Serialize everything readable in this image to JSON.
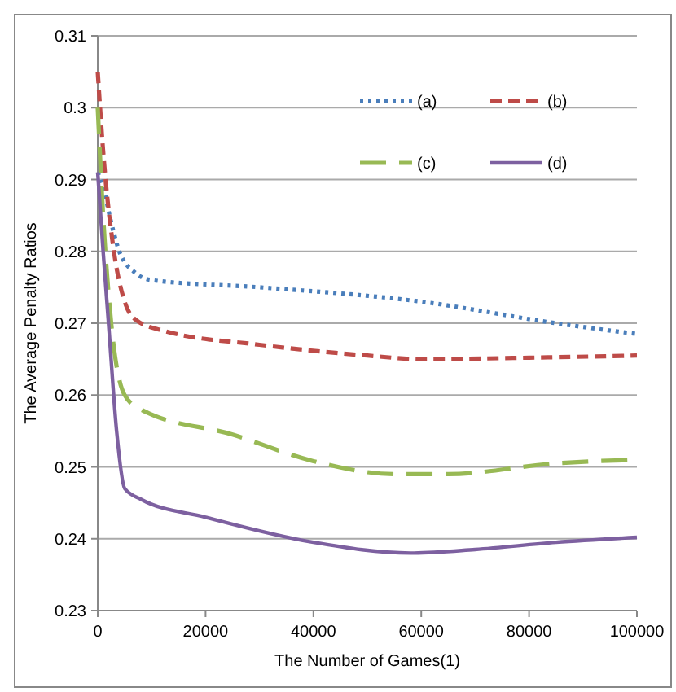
{
  "chart_data": {
    "type": "line",
    "xlabel": "The Number of Games(1)",
    "ylabel": "The Average Penalty Ratios",
    "xlim": [
      0,
      100000
    ],
    "xticks": [
      0,
      20000,
      40000,
      60000,
      80000,
      100000
    ],
    "ylim": [
      0.23,
      0.31
    ],
    "yticks": [
      0.23,
      0.24,
      0.25,
      0.26,
      0.27,
      0.28,
      0.29,
      0.3,
      0.31
    ],
    "grid": "y",
    "legend": "top right",
    "marker": "none",
    "series": [
      {
        "name": "(a)",
        "color": "#4a7ebb",
        "line_style": "dotted",
        "x": [
          0,
          1000,
          2500,
          4000,
          7000,
          10000,
          30000,
          60000,
          85000,
          100000
        ],
        "values": [
          0.291,
          0.289,
          0.284,
          0.28,
          0.277,
          0.276,
          0.275,
          0.273,
          0.27,
          0.2685
        ]
      },
      {
        "name": "(b)",
        "color": "#be4b48",
        "line_style": "dashed",
        "x": [
          0,
          1000,
          3000,
          5000,
          7000,
          12000,
          30000,
          50000,
          60000,
          80000,
          100000
        ],
        "values": [
          0.305,
          0.294,
          0.28,
          0.273,
          0.2705,
          0.269,
          0.267,
          0.2655,
          0.265,
          0.2652,
          0.2655
        ]
      },
      {
        "name": "(c)",
        "color": "#98b954",
        "line_style": "longdash",
        "x": [
          0,
          1000,
          2500,
          5000,
          8000,
          25000,
          40000,
          55000,
          65000,
          85000,
          100000
        ],
        "values": [
          0.3,
          0.285,
          0.27,
          0.26,
          0.258,
          0.2545,
          0.2508,
          0.249,
          0.249,
          0.2505,
          0.251
        ]
      },
      {
        "name": "(d)",
        "color": "#7d60a0",
        "line_style": "solid",
        "x": [
          0,
          1000,
          2000,
          3500,
          5000,
          8000,
          20000,
          40000,
          58000,
          70000,
          85000,
          100000
        ],
        "values": [
          0.291,
          0.28,
          0.27,
          0.255,
          0.247,
          0.2455,
          0.243,
          0.2395,
          0.238,
          0.2385,
          0.2395,
          0.2402
        ]
      }
    ]
  }
}
